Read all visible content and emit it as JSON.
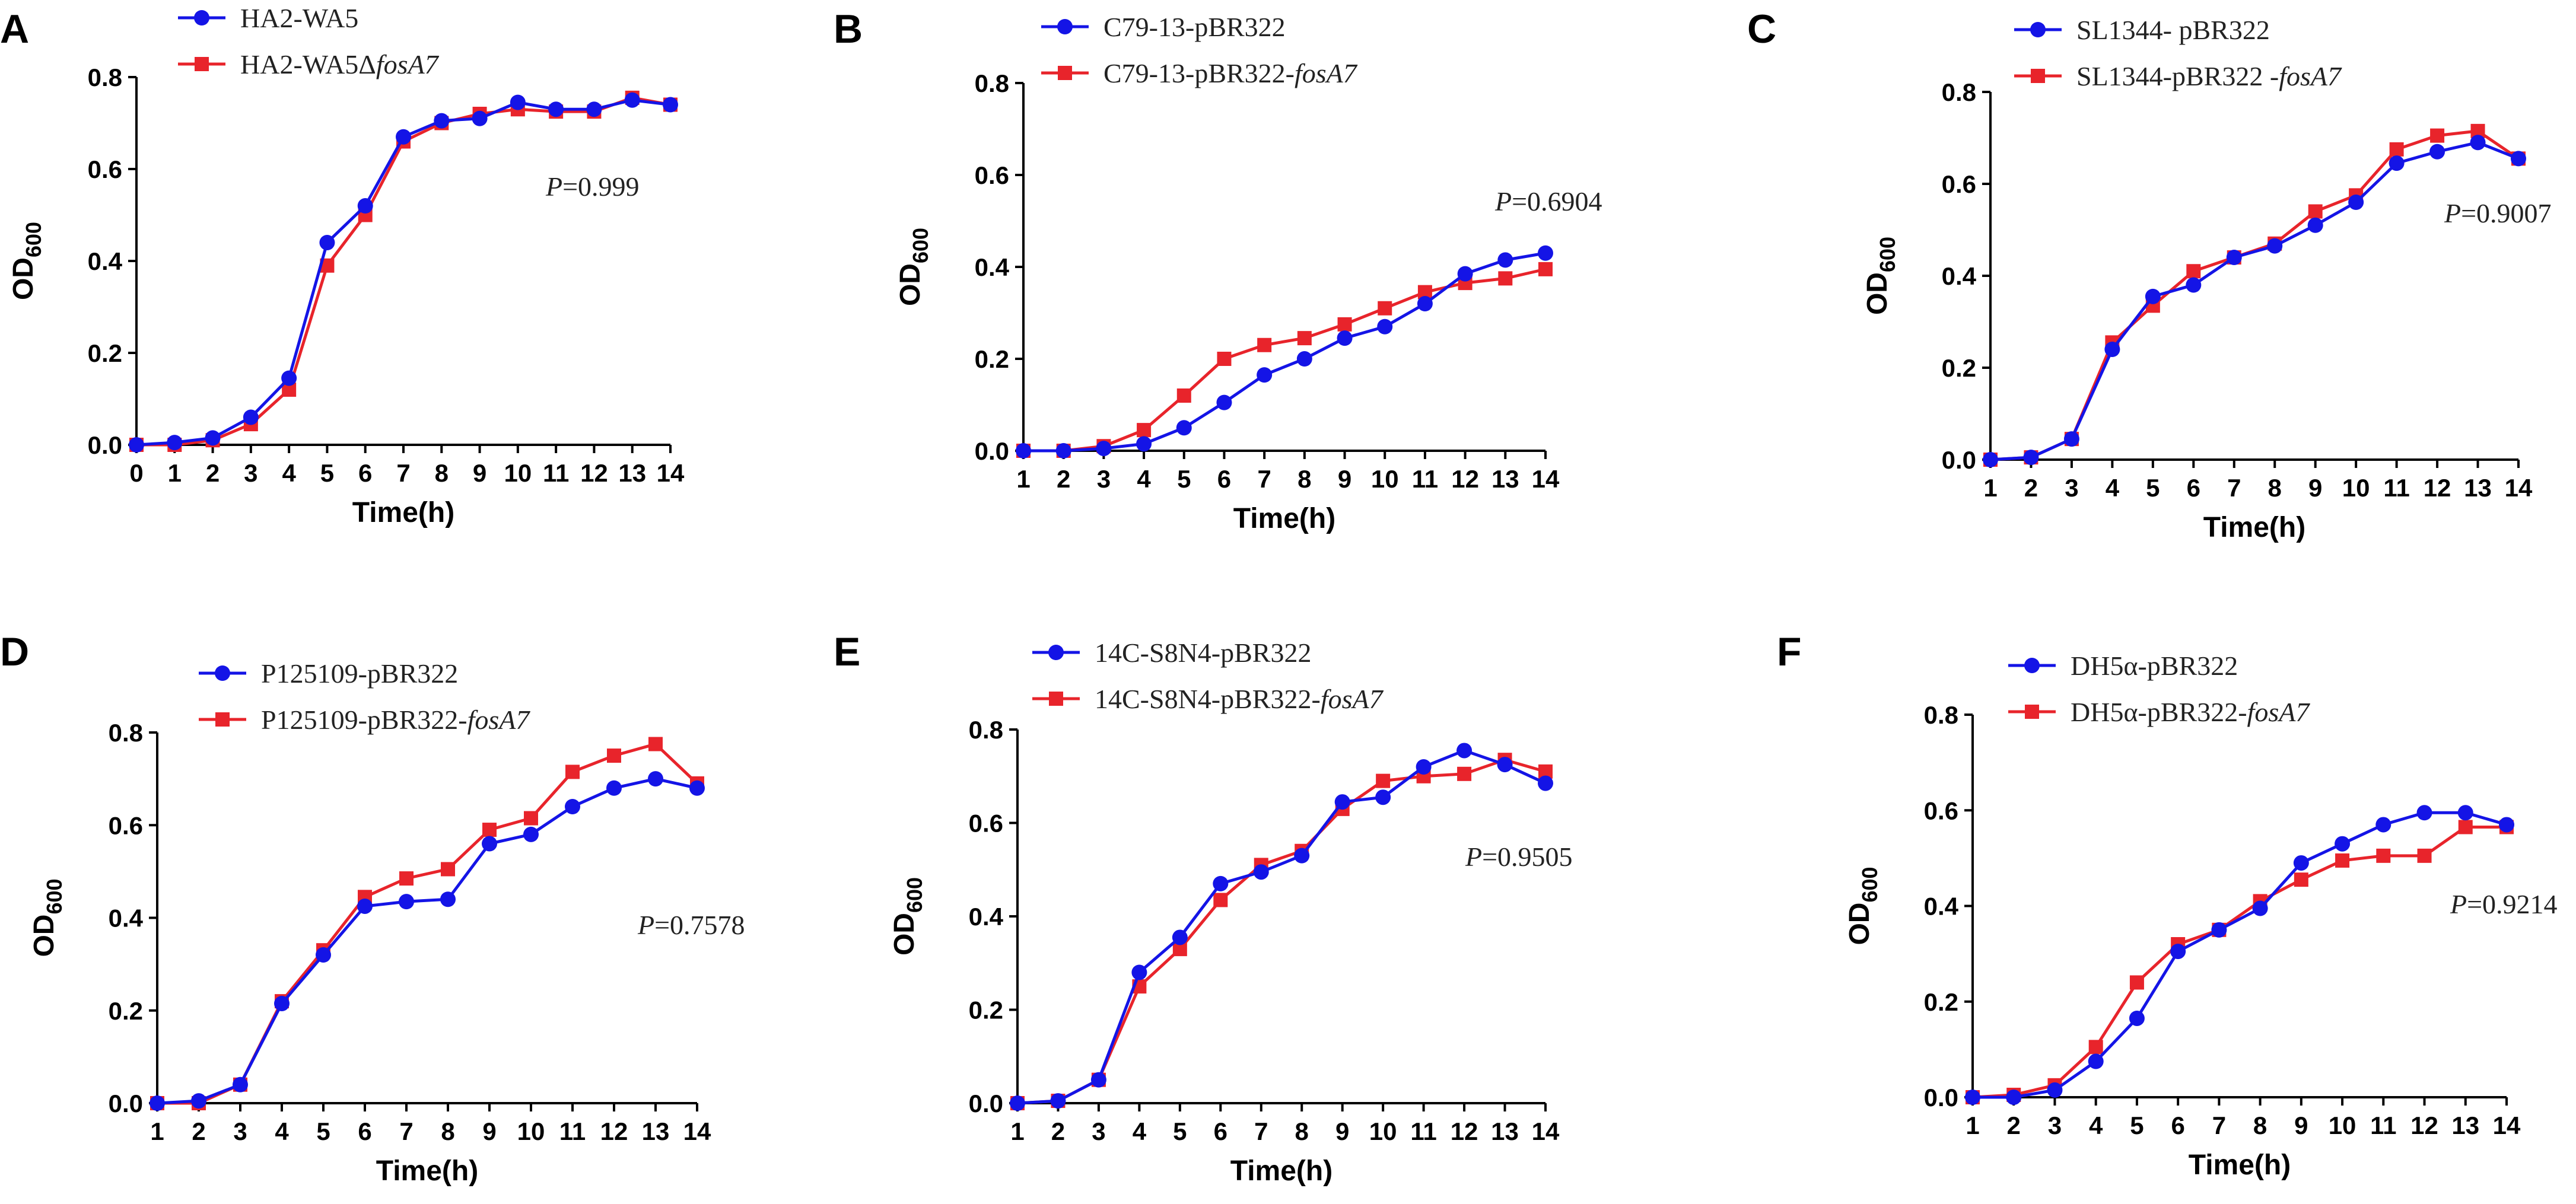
{
  "colors": {
    "blue": "#1414e6",
    "red": "#e8242b"
  },
  "chart_data": [
    {
      "panel": "A",
      "type": "line",
      "title": "",
      "xlabel": "Time(h)",
      "ylabel": "OD",
      "ylabel_sub": "600",
      "xlim": [
        0,
        14
      ],
      "ylim": [
        0,
        0.8
      ],
      "xticks": [
        "0",
        "1",
        "2",
        "3",
        "4",
        "5",
        "6",
        "7",
        "8",
        "9",
        "10",
        "11",
        "12",
        "13",
        "14"
      ],
      "yticks": [
        "0.0",
        "0.2",
        "0.4",
        "0.6",
        "0.8"
      ],
      "x": [
        0,
        1,
        2,
        3,
        4,
        5,
        6,
        7,
        8,
        9,
        10,
        11,
        12,
        13,
        14
      ],
      "series": [
        {
          "name": "HA2-WA5",
          "name_italic": "",
          "marker": "circle",
          "color": "blue",
          "values": [
            0.0,
            0.005,
            0.015,
            0.06,
            0.145,
            0.44,
            0.52,
            0.67,
            0.705,
            0.71,
            0.745,
            0.73,
            0.73,
            0.75,
            0.74
          ]
        },
        {
          "name": "HA2-WA5Δ",
          "name_italic": "fosA7",
          "marker": "square",
          "color": "red",
          "values": [
            0.0,
            0.0,
            0.01,
            0.045,
            0.12,
            0.39,
            0.5,
            0.66,
            0.7,
            0.72,
            0.73,
            0.725,
            0.725,
            0.755,
            0.74
          ]
        }
      ],
      "p_label": "P",
      "p_value": "=0.999"
    },
    {
      "panel": "B",
      "type": "line",
      "title": "",
      "xlabel": "Time(h)",
      "ylabel": "OD",
      "ylabel_sub": "600",
      "xlim": [
        1,
        14
      ],
      "ylim": [
        0,
        0.8
      ],
      "xticks": [
        "1",
        "2",
        "3",
        "4",
        "5",
        "6",
        "7",
        "8",
        "9",
        "10",
        "11",
        "12",
        "13",
        "14"
      ],
      "yticks": [
        "0.0",
        "0.2",
        "0.4",
        "0.6",
        "0.8"
      ],
      "x": [
        1,
        2,
        3,
        4,
        5,
        6,
        7,
        8,
        9,
        10,
        11,
        12,
        13,
        14
      ],
      "series": [
        {
          "name": "C79-13-pBR322",
          "name_italic": "",
          "marker": "circle",
          "color": "blue",
          "values": [
            0.0,
            0.0,
            0.005,
            0.015,
            0.05,
            0.105,
            0.165,
            0.2,
            0.245,
            0.27,
            0.32,
            0.385,
            0.415,
            0.43
          ]
        },
        {
          "name": "C79-13-pBR322-",
          "name_italic": "fosA7",
          "marker": "square",
          "color": "red",
          "values": [
            0.0,
            0.0,
            0.01,
            0.045,
            0.12,
            0.2,
            0.23,
            0.245,
            0.275,
            0.31,
            0.345,
            0.365,
            0.375,
            0.395
          ]
        }
      ],
      "p_label": "P",
      "p_value": "=0.6904"
    },
    {
      "panel": "C",
      "type": "line",
      "title": "",
      "xlabel": "Time(h)",
      "ylabel": "OD",
      "ylabel_sub": "600",
      "xlim": [
        1,
        14
      ],
      "ylim": [
        0,
        0.8
      ],
      "xticks": [
        "1",
        "2",
        "3",
        "4",
        "5",
        "6",
        "7",
        "8",
        "9",
        "10",
        "11",
        "12",
        "13",
        "14"
      ],
      "yticks": [
        "0.0",
        "0.2",
        "0.4",
        "0.6",
        "0.8"
      ],
      "x": [
        1,
        2,
        3,
        4,
        5,
        6,
        7,
        8,
        9,
        10,
        11,
        12,
        13,
        14
      ],
      "series": [
        {
          "name": "SL1344- pBR322",
          "name_italic": "",
          "marker": "circle",
          "color": "blue",
          "values": [
            0.0,
            0.005,
            0.045,
            0.24,
            0.355,
            0.38,
            0.44,
            0.465,
            0.51,
            0.56,
            0.645,
            0.67,
            0.69,
            0.655
          ]
        },
        {
          "name": "SL1344-pBR322 -",
          "name_italic": "fosA7",
          "marker": "square",
          "color": "red",
          "values": [
            0.0,
            0.005,
            0.045,
            0.255,
            0.335,
            0.41,
            0.44,
            0.47,
            0.54,
            0.575,
            0.675,
            0.705,
            0.715,
            0.655
          ]
        }
      ],
      "p_label": "P",
      "p_value": "=0.9007"
    },
    {
      "panel": "D",
      "type": "line",
      "title": "",
      "xlabel": "Time(h)",
      "ylabel": "OD",
      "ylabel_sub": "600",
      "xlim": [
        1,
        14
      ],
      "ylim": [
        0,
        0.8
      ],
      "xticks": [
        "1",
        "2",
        "3",
        "4",
        "5",
        "6",
        "7",
        "8",
        "9",
        "10",
        "11",
        "12",
        "13",
        "14"
      ],
      "yticks": [
        "0.0",
        "0.2",
        "0.4",
        "0.6",
        "0.8"
      ],
      "x": [
        1,
        2,
        3,
        4,
        5,
        6,
        7,
        8,
        9,
        10,
        11,
        12,
        13,
        14
      ],
      "series": [
        {
          "name": "P125109-pBR322",
          "name_italic": "",
          "marker": "circle",
          "color": "blue",
          "values": [
            0.0,
            0.005,
            0.04,
            0.215,
            0.32,
            0.425,
            0.435,
            0.44,
            0.56,
            0.58,
            0.64,
            0.68,
            0.7,
            0.68
          ]
        },
        {
          "name": "P125109-pBR322-",
          "name_italic": "fosA7",
          "marker": "square",
          "color": "red",
          "values": [
            0.0,
            0.0,
            0.04,
            0.22,
            0.33,
            0.445,
            0.485,
            0.505,
            0.59,
            0.615,
            0.715,
            0.75,
            0.775,
            0.69
          ]
        }
      ],
      "p_label": "P",
      "p_value": "=0.7578"
    },
    {
      "panel": "E",
      "type": "line",
      "title": "",
      "xlabel": "Time(h)",
      "ylabel": "OD",
      "ylabel_sub": "600",
      "xlim": [
        1,
        14
      ],
      "ylim": [
        0,
        0.8
      ],
      "xticks": [
        "1",
        "2",
        "3",
        "4",
        "5",
        "6",
        "7",
        "8",
        "9",
        "10",
        "11",
        "12",
        "13",
        "14"
      ],
      "yticks": [
        "0.0",
        "0.2",
        "0.4",
        "0.6",
        "0.8"
      ],
      "x": [
        1,
        2,
        3,
        4,
        5,
        6,
        7,
        8,
        9,
        10,
        11,
        12,
        13,
        14
      ],
      "series": [
        {
          "name": "14C-S8N4-pBR322",
          "name_italic": "",
          "marker": "circle",
          "color": "blue",
          "values": [
            0.0,
            0.005,
            0.05,
            0.28,
            0.355,
            0.47,
            0.495,
            0.53,
            0.645,
            0.655,
            0.72,
            0.755,
            0.725,
            0.685
          ]
        },
        {
          "name": "14C-S8N4-pBR322-",
          "name_italic": "fosA7",
          "marker": "square",
          "color": "red",
          "values": [
            0.0,
            0.005,
            0.05,
            0.25,
            0.33,
            0.435,
            0.51,
            0.54,
            0.63,
            0.69,
            0.7,
            0.705,
            0.735,
            0.71
          ]
        }
      ],
      "p_label": "P",
      "p_value": "=0.9505"
    },
    {
      "panel": "F",
      "type": "line",
      "title": "",
      "xlabel": "Time(h)",
      "ylabel": "OD",
      "ylabel_sub": "600",
      "xlim": [
        1,
        14
      ],
      "ylim": [
        0,
        0.8
      ],
      "xticks": [
        "1",
        "2",
        "3",
        "4",
        "5",
        "6",
        "7",
        "8",
        "9",
        "10",
        "11",
        "12",
        "13",
        "14"
      ],
      "yticks": [
        "0.0",
        "0.2",
        "0.4",
        "0.6",
        "0.8"
      ],
      "x": [
        1,
        2,
        3,
        4,
        5,
        6,
        7,
        8,
        9,
        10,
        11,
        12,
        13,
        14
      ],
      "series": [
        {
          "name": "DH5α-pBR322",
          "name_italic": "",
          "marker": "circle",
          "color": "blue",
          "values": [
            0.0,
            0.0,
            0.015,
            0.075,
            0.165,
            0.305,
            0.35,
            0.395,
            0.49,
            0.53,
            0.57,
            0.595,
            0.595,
            0.57
          ]
        },
        {
          "name": "DH5α-pBR322-",
          "name_italic": "fosA7",
          "marker": "square",
          "color": "red",
          "values": [
            0.0,
            0.005,
            0.025,
            0.105,
            0.24,
            0.32,
            0.35,
            0.41,
            0.455,
            0.495,
            0.505,
            0.505,
            0.565,
            0.565
          ]
        }
      ],
      "p_label": "P",
      "p_value": "=0.9214"
    }
  ]
}
